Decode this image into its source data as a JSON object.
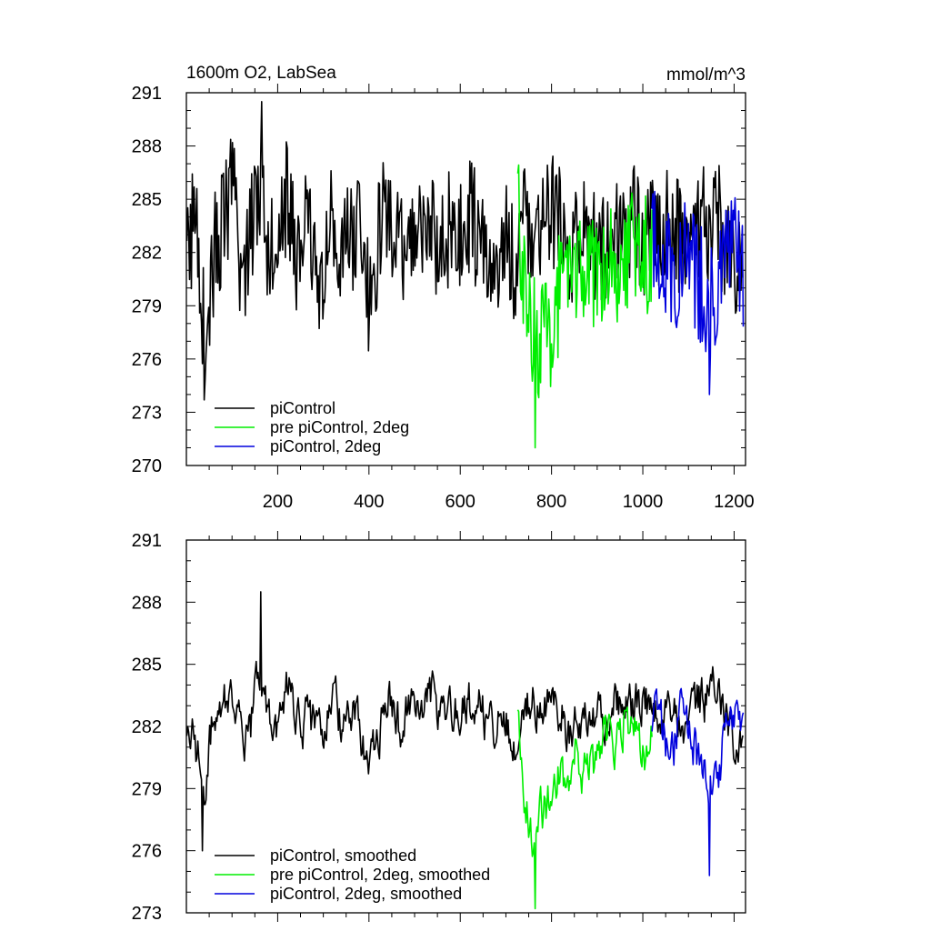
{
  "chart_data": [
    {
      "type": "line",
      "title": "1600m O2, LabSea",
      "units_label": "mmol/m^3",
      "xlim": [
        0,
        1225
      ],
      "ylim": [
        270,
        291
      ],
      "xticks": [
        200,
        400,
        600,
        800,
        1000,
        1200
      ],
      "xtick_labels": [
        "200",
        "400",
        "600",
        "800",
        "1000",
        "1200"
      ],
      "yticks": [
        270,
        273,
        276,
        279,
        282,
        285,
        288,
        291
      ],
      "ytick_labels": [
        "270",
        "273",
        "276",
        "279",
        "282",
        "285",
        "288",
        "291"
      ],
      "legend_position": "bottom-left",
      "series": [
        {
          "name": "piControl",
          "color": "#000000",
          "x_start": 1,
          "x_end": 1220,
          "step": 20,
          "values": [
            281.2,
            284.8,
            276.5,
            282.0,
            283.5,
            285.6,
            280.3,
            283.2,
            286.4,
            282.1,
            284.0,
            285.2,
            281.4,
            283.6,
            282.0,
            279.6,
            284.7,
            281.8,
            282.7,
            283.4,
            279.3,
            282.6,
            284.8,
            282.5,
            281.0,
            283.4,
            284.1,
            282.6,
            281.9,
            283.8,
            282.5,
            284.2,
            283.0,
            280.6,
            281.6,
            282.7,
            281.3,
            283.6,
            283.8,
            282.9,
            284.1,
            284.0,
            281.7,
            283.0,
            282.3,
            282.7,
            282.2,
            283.8,
            282.2,
            284.2,
            282.9,
            283.0,
            283.3,
            283.6,
            282.9,
            282.6,
            283.2,
            283.6,
            284.1,
            282.6,
            281.4,
            281.5
          ],
          "extremes": {
            "max": [
              166,
              290.5
            ],
            "min": [
              40,
              273.7
            ]
          }
        },
        {
          "name": "pre piControl, 2deg",
          "color": "#00ee00",
          "x_start": 726,
          "x_end": 1020,
          "step": 15,
          "values": [
            284.8,
            279.2,
            278.0,
            276.9,
            277.4,
            278.0,
            279.9,
            279.4,
            281.7,
            280.6,
            280.7,
            280.5,
            281.6,
            282.6,
            281.3,
            281.8,
            282.6,
            282.0,
            282.0,
            281.9
          ],
          "extremes": {
            "min": [
              765,
              271.0
            ]
          }
        },
        {
          "name": "piControl, 2deg",
          "color": "#0000dd",
          "x_start": 1020,
          "x_end": 1220,
          "step": 20,
          "values": [
            282.6,
            282.2,
            281.1,
            281.1,
            282.0,
            280.5,
            279.6,
            278.8,
            281.5,
            282.6,
            280.4
          ],
          "extremes": {
            "min": [
              1146,
              274.0
            ]
          }
        }
      ]
    },
    {
      "type": "line",
      "title": "",
      "xlim": [
        0,
        1225
      ],
      "ylim": [
        273,
        291
      ],
      "yticks": [
        273,
        276,
        279,
        282,
        285,
        288,
        291
      ],
      "ytick_labels": [
        "273",
        "276",
        "279",
        "282",
        "285",
        "288",
        "291"
      ],
      "legend_position": "bottom-left",
      "series": [
        {
          "name": "piControl, smoothed",
          "color": "#000000",
          "x_start": 1,
          "x_end": 1220,
          "step": 20,
          "values": [
            282.3,
            280.8,
            279.1,
            282.8,
            283.6,
            283.3,
            281.4,
            281.9,
            284.8,
            282.4,
            281.2,
            284.2,
            282.0,
            282.3,
            282.1,
            282.2,
            283.8,
            282.1,
            282.4,
            281.9,
            280.3,
            281.5,
            283.6,
            281.9,
            282.4,
            282.8,
            282.7,
            283.4,
            282.6,
            283.0,
            282.7,
            283.1,
            283.1,
            281.8,
            282.2,
            282.0,
            281.4,
            283.4,
            283.2,
            282.2,
            283.0,
            282.9,
            281.3,
            282.6,
            281.9,
            282.2,
            282.4,
            283.2,
            282.7,
            283.1,
            283.3,
            282.5,
            282.6,
            283.2,
            282.6,
            281.8,
            283.1,
            283.3,
            284.0,
            282.4,
            281.2,
            281.9
          ],
          "extremes": {
            "max": [
              164,
              288.5
            ],
            "min": [
              36,
              276.0
            ]
          }
        },
        {
          "name": "pre piControl, 2deg, smoothed",
          "color": "#00ee00",
          "x_start": 726,
          "x_end": 1020,
          "step": 15,
          "values": [
            283.5,
            278.6,
            276.2,
            277.5,
            278.2,
            278.6,
            279.9,
            279.2,
            281.2,
            280.0,
            280.3,
            279.9,
            281.7,
            281.8,
            281.3,
            282.3,
            281.8,
            281.3,
            281.0,
            281.6
          ],
          "extremes": {
            "min": [
              764,
              273.2
            ]
          }
        },
        {
          "name": "piControl, 2deg, smoothed",
          "color": "#0000dd",
          "x_start": 1020,
          "x_end": 1220,
          "step": 20,
          "values": [
            282.4,
            282.1,
            279.8,
            282.5,
            282.2,
            280.4,
            279.6,
            278.6,
            281.6,
            282.4,
            281.8
          ],
          "extremes": {
            "min": [
              1146,
              274.8
            ]
          }
        }
      ]
    }
  ]
}
